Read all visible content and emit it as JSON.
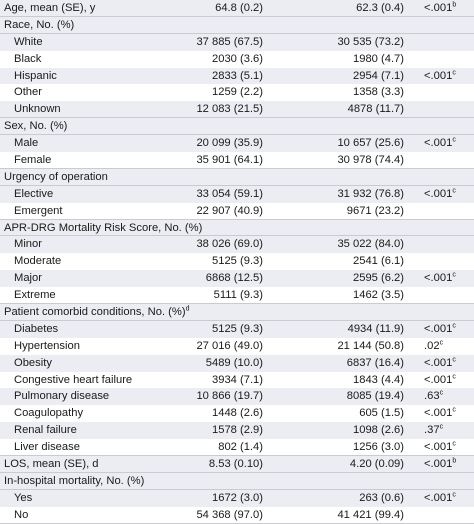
{
  "rows": [
    {
      "label": "Age, mean (SE), y",
      "c1": "64.8 (0.2)",
      "c2": "62.3 (0.4)",
      "p": "<.001",
      "sup": "b",
      "type": "head"
    },
    {
      "label": "Race, No. (%)",
      "c1": "",
      "c2": "",
      "p": "",
      "sup": "",
      "type": "head"
    },
    {
      "label": "White",
      "c1": "37 885 (67.5)",
      "c2": "30 535 (73.2)",
      "p": "",
      "sup": "",
      "type": "sub",
      "shade": true
    },
    {
      "label": "Black",
      "c1": "2030 (3.6)",
      "c2": "1980 (4.7)",
      "p": "",
      "sup": "",
      "type": "sub"
    },
    {
      "label": "Hispanic",
      "c1": "2833 (5.1)",
      "c2": "2954 (7.1)",
      "p": "<.001",
      "sup": "c",
      "type": "sub",
      "shade": true
    },
    {
      "label": "Other",
      "c1": "1259 (2.2)",
      "c2": "1358 (3.3)",
      "p": "",
      "sup": "",
      "type": "sub"
    },
    {
      "label": "Unknown",
      "c1": "12 083 (21.5)",
      "c2": "4878 (11.7)",
      "p": "",
      "sup": "",
      "type": "sub",
      "shade": true
    },
    {
      "label": "Sex, No. (%)",
      "c1": "",
      "c2": "",
      "p": "",
      "sup": "",
      "type": "head"
    },
    {
      "label": "Male",
      "c1": "20 099 (35.9)",
      "c2": "10 657 (25.6)",
      "p": "<.001",
      "sup": "c",
      "type": "sub",
      "shade": true
    },
    {
      "label": "Female",
      "c1": "35 901 (64.1)",
      "c2": "30 978 (74.4)",
      "p": "",
      "sup": "",
      "type": "sub"
    },
    {
      "label": "Urgency of operation",
      "c1": "",
      "c2": "",
      "p": "",
      "sup": "",
      "type": "head"
    },
    {
      "label": "Elective",
      "c1": "33 054 (59.1)",
      "c2": "31 932 (76.8)",
      "p": "<.001",
      "sup": "c",
      "type": "sub",
      "shade": true
    },
    {
      "label": "Emergent",
      "c1": "22 907 (40.9)",
      "c2": "9671 (23.2)",
      "p": "",
      "sup": "",
      "type": "sub"
    },
    {
      "label": "APR-DRG Mortality Risk Score, No. (%)",
      "c1": "",
      "c2": "",
      "p": "",
      "sup": "",
      "type": "head"
    },
    {
      "label": "Minor",
      "c1": "38 026 (69.0)",
      "c2": "35 022 (84.0)",
      "p": "",
      "sup": "",
      "type": "sub",
      "shade": true
    },
    {
      "label": "Moderate",
      "c1": "5125 (9.3)",
      "c2": "2541 (6.1)",
      "p": "",
      "sup": "",
      "type": "sub"
    },
    {
      "label": "Major",
      "c1": "6868 (12.5)",
      "c2": "2595 (6.2)",
      "p": "<.001",
      "sup": "c",
      "type": "sub",
      "shade": true
    },
    {
      "label": "Extreme",
      "c1": "5111 (9.3)",
      "c2": "1462 (3.5)",
      "p": "",
      "sup": "",
      "type": "sub"
    },
    {
      "label": "Patient comorbid conditions, No. (%)",
      "labelSup": "d",
      "c1": "",
      "c2": "",
      "p": "",
      "sup": "",
      "type": "head"
    },
    {
      "label": "Diabetes",
      "c1": "5125 (9.3)",
      "c2": "4934 (11.9)",
      "p": "<.001",
      "sup": "c",
      "type": "sub",
      "shade": true
    },
    {
      "label": "Hypertension",
      "c1": "27 016 (49.0)",
      "c2": "21 144 (50.8)",
      "p": ".02",
      "sup": "c",
      "type": "sub"
    },
    {
      "label": "Obesity",
      "c1": "5489 (10.0)",
      "c2": "6837 (16.4)",
      "p": "<.001",
      "sup": "c",
      "type": "sub",
      "shade": true
    },
    {
      "label": "Congestive heart failure",
      "c1": "3934 (7.1)",
      "c2": "1843 (4.4)",
      "p": "<.001",
      "sup": "c",
      "type": "sub"
    },
    {
      "label": "Pulmonary disease",
      "c1": "10 866 (19.7)",
      "c2": "8085 (19.4)",
      "p": ".63",
      "sup": "c",
      "type": "sub",
      "shade": true
    },
    {
      "label": "Coagulopathy",
      "c1": "1448 (2.6)",
      "c2": "605 (1.5)",
      "p": "<.001",
      "sup": "c",
      "type": "sub"
    },
    {
      "label": "Renal failure",
      "c1": "1578 (2.9)",
      "c2": "1098 (2.6)",
      "p": ".37",
      "sup": "c",
      "type": "sub",
      "shade": true
    },
    {
      "label": "Liver disease",
      "c1": "802 (1.4)",
      "c2": "1256 (3.0)",
      "p": "<.001",
      "sup": "c",
      "type": "sub"
    },
    {
      "label": "LOS, mean (SE), d",
      "c1": "8.53 (0.10)",
      "c2": "4.20 (0.09)",
      "p": "<.001",
      "sup": "b",
      "type": "head"
    },
    {
      "label": "In-hospital mortality, No. (%)",
      "c1": "",
      "c2": "",
      "p": "",
      "sup": "",
      "type": "head"
    },
    {
      "label": "Yes",
      "c1": "1672 (3.0)",
      "c2": "263 (0.6)",
      "p": "<.001",
      "sup": "c",
      "type": "sub",
      "shade": true
    },
    {
      "label": "No",
      "c1": "54 368 (97.0)",
      "c2": "41 421 (99.4)",
      "p": "",
      "sup": "",
      "type": "sub"
    }
  ]
}
